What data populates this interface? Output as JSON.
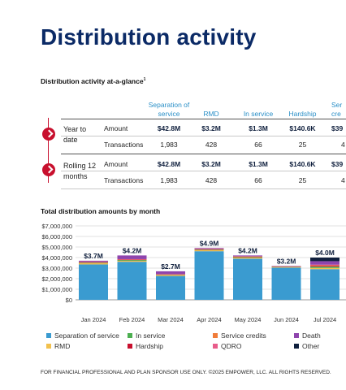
{
  "page": {
    "title": "Distribution activity",
    "at_a_glance_title": "Distribution activity at-a-glance",
    "footnote_marker": "1",
    "footer": "FOR FINANCIAL PROFESSIONAL AND PLAN SPONSOR USE ONLY. ©2025 EMPOWER, LLC. ALL RIGHTS RESERVED."
  },
  "table": {
    "columns": [
      "Separation of service",
      "RMD",
      "In service",
      "Hardship",
      "Service credits"
    ],
    "columns_visible": [
      "Separation of\nservice",
      "RMD",
      "In service",
      "Hardship",
      "Ser\ncre"
    ],
    "periods": [
      {
        "label": "Year to date",
        "rows": [
          {
            "metric": "Amount",
            "values": [
              "$42.8M",
              "$3.2M",
              "$1.3M",
              "$140.6K",
              "$39"
            ]
          },
          {
            "metric": "Transactions",
            "values": [
              "1,983",
              "428",
              "66",
              "25",
              "4"
            ]
          }
        ]
      },
      {
        "label": "Rolling 12 months",
        "rows": [
          {
            "metric": "Amount",
            "values": [
              "$42.8M",
              "$3.2M",
              "$1.3M",
              "$140.6K",
              "$39"
            ]
          },
          {
            "metric": "Transactions",
            "values": [
              "1,983",
              "428",
              "66",
              "25",
              "4"
            ]
          }
        ]
      }
    ]
  },
  "chart_data": {
    "type": "bar",
    "stacked": true,
    "title": "Total distribution amounts by month",
    "categories": [
      "Jan 2024",
      "Feb 2024",
      "Mar 2024",
      "Apr 2024",
      "May 2024",
      "Jun 2024",
      "Jul 2024"
    ],
    "totals_labels": [
      "$3.7M",
      "$4.2M",
      "$2.7M",
      "$4.9M",
      "$4.2M",
      "$3.2M",
      "$4.0M"
    ],
    "ylim": [
      0,
      7000000
    ],
    "yticks": [
      "$0",
      "$1,000,000",
      "$2,000,000",
      "$3,000,000",
      "$4,000,000",
      "$5,000,000",
      "$6,000,000",
      "$7,000,000"
    ],
    "grid": true,
    "legend_position": "bottom",
    "series": [
      {
        "name": "Separation of service",
        "color": "#3a9bd0",
        "values": [
          3350000,
          3600000,
          2250000,
          4600000,
          3900000,
          3050000,
          2900000
        ]
      },
      {
        "name": "RMD",
        "color": "#f2c14e",
        "values": [
          120000,
          100000,
          80000,
          100000,
          100000,
          60000,
          120000
        ]
      },
      {
        "name": "In service",
        "color": "#4caf50",
        "values": [
          60000,
          80000,
          50000,
          60000,
          60000,
          40000,
          120000
        ]
      },
      {
        "name": "Hardship",
        "color": "#c8102e",
        "values": [
          20000,
          20000,
          20000,
          20000,
          20000,
          20000,
          80000
        ]
      },
      {
        "name": "Service credits",
        "color": "#f07c3a",
        "values": [
          30000,
          30000,
          20000,
          30000,
          30000,
          10000,
          50000
        ]
      },
      {
        "name": "QDRO",
        "color": "#e85c8a",
        "values": [
          20000,
          20000,
          20000,
          20000,
          20000,
          10000,
          60000
        ]
      },
      {
        "name": "Death",
        "color": "#8e44ad",
        "values": [
          100000,
          350000,
          260000,
          70000,
          70000,
          10000,
          330000
        ]
      },
      {
        "name": "Other",
        "color": "#0f1f3d",
        "values": [
          0,
          0,
          0,
          0,
          0,
          0,
          340000
        ]
      }
    ]
  }
}
